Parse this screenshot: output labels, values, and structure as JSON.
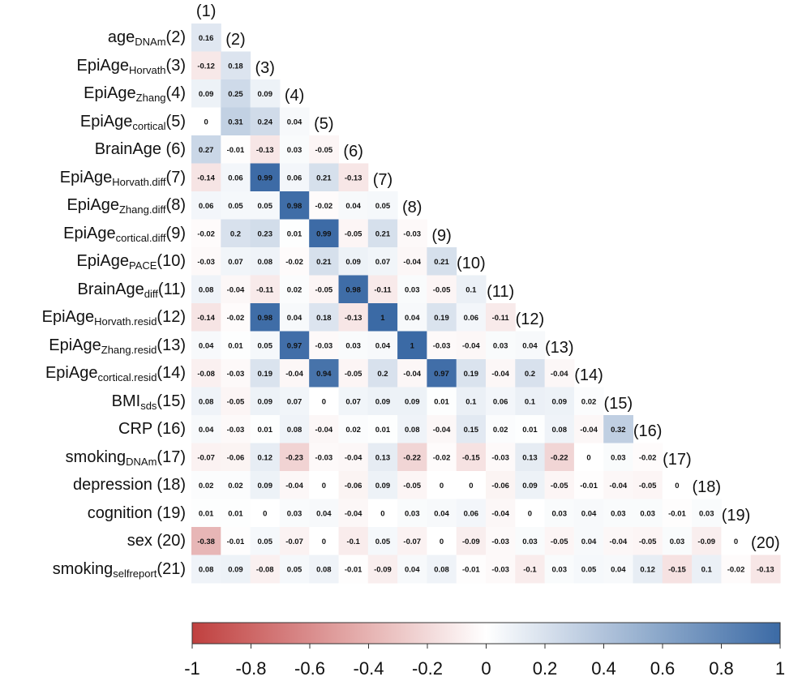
{
  "chart_data": {
    "type": "heatmap",
    "subtype": "correlation-lower-triangle",
    "columns": [
      "(1)",
      "(2)",
      "(3)",
      "(4)",
      "(5)",
      "(6)",
      "(7)",
      "(8)",
      "(9)",
      "(10)",
      "(11)",
      "(12)",
      "(13)",
      "(14)",
      "(15)",
      "(16)",
      "(17)",
      "(18)",
      "(19)",
      "(20)"
    ],
    "rows": [
      {
        "main": "age",
        "sub": "DNAm",
        "num": "(2)"
      },
      {
        "main": "EpiAge",
        "sub": "Horvath",
        "num": "(3)"
      },
      {
        "main": "EpiAge",
        "sub": "Zhang",
        "num": "(4)"
      },
      {
        "main": "EpiAge",
        "sub": "cortical",
        "num": "(5)"
      },
      {
        "main": "BrainAge ",
        "sub": "",
        "num": "(6)"
      },
      {
        "main": "EpiAge",
        "sub": "Horvath.diff",
        "num": "(7)"
      },
      {
        "main": "EpiAge",
        "sub": "Zhang.diff",
        "num": "(8)"
      },
      {
        "main": "EpiAge",
        "sub": "cortical.diff",
        "num": "(9)"
      },
      {
        "main": "EpiAge",
        "sub": "PACE",
        "num": "(10)"
      },
      {
        "main": "BrainAge",
        "sub": "diff",
        "num": "(11)"
      },
      {
        "main": "EpiAge",
        "sub": "Horvath.resid",
        "num": "(12)"
      },
      {
        "main": "EpiAge",
        "sub": "Zhang.resid",
        "num": "(13)"
      },
      {
        "main": "EpiAge",
        "sub": "cortical.resid",
        "num": "(14)"
      },
      {
        "main": "BMI",
        "sub": "sds",
        "num": "(15)"
      },
      {
        "main": "CRP ",
        "sub": "",
        "num": "(16)"
      },
      {
        "main": "smoking",
        "sub": "DNAm",
        "num": "(17)"
      },
      {
        "main": "depression ",
        "sub": "",
        "num": "(18)"
      },
      {
        "main": "cognition ",
        "sub": "",
        "num": "(19)"
      },
      {
        "main": "sex ",
        "sub": "",
        "num": "(20)"
      },
      {
        "main": "smoking",
        "sub": "selfreport",
        "num": "(21)"
      }
    ],
    "values": [
      [
        0.16
      ],
      [
        -0.12,
        0.18
      ],
      [
        0.09,
        0.25,
        0.09
      ],
      [
        0,
        0.31,
        0.24,
        0.04
      ],
      [
        0.27,
        -0.01,
        -0.13,
        0.03,
        -0.05
      ],
      [
        -0.14,
        0.06,
        0.99,
        0.06,
        0.21,
        -0.13
      ],
      [
        0.06,
        0.05,
        0.05,
        0.98,
        -0.02,
        0.04,
        0.05
      ],
      [
        -0.02,
        0.2,
        0.23,
        0.01,
        0.99,
        -0.05,
        0.21,
        -0.03
      ],
      [
        -0.03,
        0.07,
        0.08,
        -0.02,
        0.21,
        0.09,
        0.07,
        -0.04,
        0.21
      ],
      [
        0.08,
        -0.04,
        -0.11,
        0.02,
        -0.05,
        0.98,
        -0.11,
        0.03,
        -0.05,
        0.1
      ],
      [
        -0.14,
        -0.02,
        0.98,
        0.04,
        0.18,
        -0.13,
        1,
        0.04,
        0.19,
        0.06,
        -0.11
      ],
      [
        0.04,
        0.01,
        0.05,
        0.97,
        -0.03,
        0.03,
        0.04,
        1,
        -0.03,
        -0.04,
        0.03,
        0.04
      ],
      [
        -0.08,
        -0.03,
        0.19,
        -0.04,
        0.94,
        -0.05,
        0.2,
        -0.04,
        0.97,
        0.19,
        -0.04,
        0.2,
        -0.04
      ],
      [
        0.08,
        -0.05,
        0.09,
        0.07,
        0,
        0.07,
        0.09,
        0.09,
        0.01,
        0.1,
        0.06,
        0.1,
        0.09,
        0.02
      ],
      [
        0.04,
        -0.03,
        0.01,
        0.08,
        -0.04,
        0.02,
        0.01,
        0.08,
        -0.04,
        0.15,
        0.02,
        0.01,
        0.08,
        -0.04,
        0.32
      ],
      [
        -0.07,
        -0.06,
        0.12,
        -0.23,
        -0.03,
        -0.04,
        0.13,
        -0.22,
        -0.02,
        -0.15,
        -0.03,
        0.13,
        -0.22,
        0,
        0.03,
        -0.02
      ],
      [
        0.02,
        0.02,
        0.09,
        -0.04,
        0,
        -0.06,
        0.09,
        -0.05,
        0,
        0,
        -0.06,
        0.09,
        -0.05,
        -0.01,
        -0.04,
        -0.05,
        0
      ],
      [
        0.01,
        0.01,
        0,
        0.03,
        0.04,
        -0.04,
        0,
        0.03,
        0.04,
        0.06,
        -0.04,
        0,
        0.03,
        0.04,
        0.03,
        0.03,
        -0.01,
        0.03
      ],
      [
        -0.38,
        -0.01,
        0.05,
        -0.07,
        0,
        -0.1,
        0.05,
        -0.07,
        0,
        -0.09,
        -0.03,
        0.03,
        -0.05,
        0.04,
        -0.04,
        -0.05,
        0.03,
        -0.09,
        0
      ],
      [
        0.08,
        0.09,
        -0.08,
        0.05,
        0.08,
        -0.01,
        -0.09,
        0.04,
        0.08,
        -0.01,
        -0.03,
        -0.1,
        0.03,
        0.05,
        0.04,
        0.12,
        -0.15,
        0.1,
        -0.02,
        -0.13
      ]
    ],
    "colorbar": {
      "range": [
        -1,
        1
      ],
      "ticks": [
        "-1",
        "-0.8",
        "-0.6",
        "-0.4",
        "-0.2",
        "0",
        "0.2",
        "0.4",
        "0.6",
        "0.8",
        "1"
      ],
      "colors": {
        "neg": "#c0403f",
        "mid": "#ffffff",
        "pos": "#3b6aa5"
      }
    }
  }
}
